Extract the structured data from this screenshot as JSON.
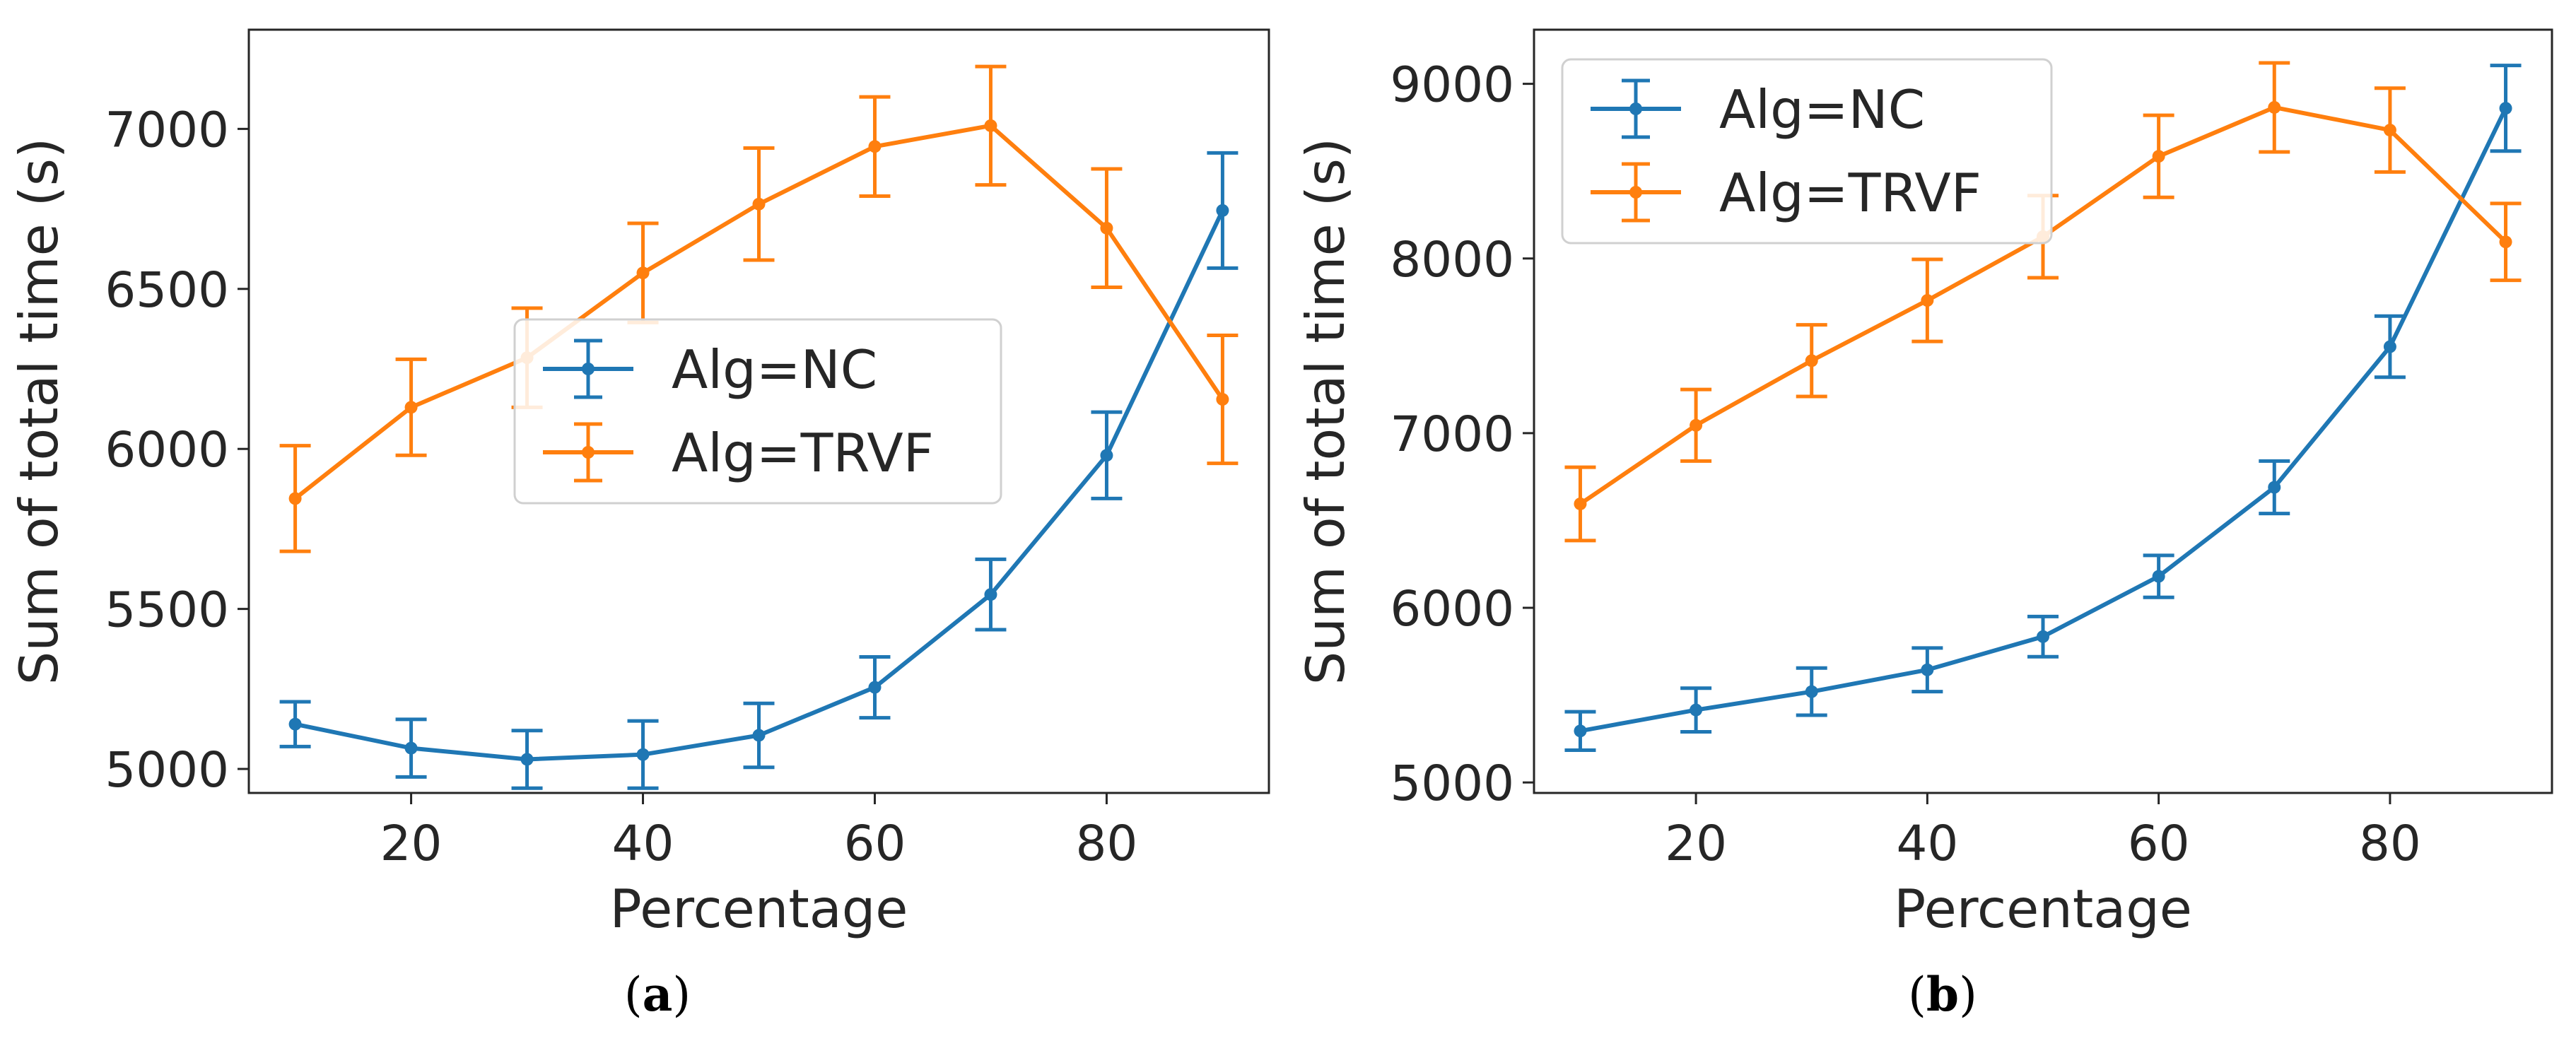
{
  "colors": {
    "nc": "#1f77b4",
    "trvf": "#ff7f0e",
    "axis": "#262626",
    "legend_border": "#d0d0d0"
  },
  "chart_data": [
    {
      "type": "line",
      "panel": "a",
      "caption": "(a)",
      "xlabel": "Percentage",
      "ylabel": "Sum of total time (s)",
      "x": [
        10,
        20,
        30,
        40,
        50,
        60,
        70,
        80,
        90
      ],
      "xlim": [
        6,
        94
      ],
      "ylim": [
        4925,
        7310
      ],
      "xticks": [
        "20",
        "40",
        "60",
        "80"
      ],
      "yticks": [
        "5000",
        "5500",
        "6000",
        "6500",
        "7000"
      ],
      "grid": false,
      "legend_position": "center-right",
      "series": [
        {
          "name": "Alg=NC",
          "color": "#1f77b4",
          "values": [
            5140,
            5065,
            5030,
            5045,
            5105,
            5255,
            5545,
            5980,
            6745
          ],
          "err": [
            70,
            90,
            90,
            105,
            100,
            95,
            110,
            135,
            180
          ]
        },
        {
          "name": "Alg=TRVF",
          "color": "#ff7f0e",
          "values": [
            5845,
            6130,
            6285,
            6550,
            6765,
            6945,
            7010,
            6690,
            6155
          ],
          "err": [
            165,
            150,
            155,
            155,
            175,
            155,
            185,
            185,
            200
          ]
        }
      ]
    },
    {
      "type": "line",
      "panel": "b",
      "caption": "(b)",
      "xlabel": "Percentage",
      "ylabel": "Sum of total time (s)",
      "x": [
        10,
        20,
        30,
        40,
        50,
        60,
        70,
        80,
        90
      ],
      "xlim": [
        6,
        94
      ],
      "ylim": [
        4940,
        9310
      ],
      "xticks": [
        "20",
        "40",
        "60",
        "80"
      ],
      "yticks": [
        "5000",
        "6000",
        "7000",
        "8000",
        "9000"
      ],
      "grid": false,
      "legend_position": "upper-left",
      "series": [
        {
          "name": "Alg=NC",
          "color": "#1f77b4",
          "values": [
            5295,
            5415,
            5520,
            5645,
            5835,
            6180,
            6690,
            7495,
            8860
          ],
          "err": [
            110,
            125,
            135,
            125,
            115,
            120,
            150,
            175,
            245
          ]
        },
        {
          "name": "Alg=TRVF",
          "color": "#ff7f0e",
          "values": [
            6595,
            7045,
            7415,
            7760,
            8125,
            8585,
            8865,
            8735,
            8095
          ],
          "err": [
            210,
            205,
            205,
            235,
            235,
            235,
            255,
            240,
            220
          ]
        }
      ]
    }
  ]
}
